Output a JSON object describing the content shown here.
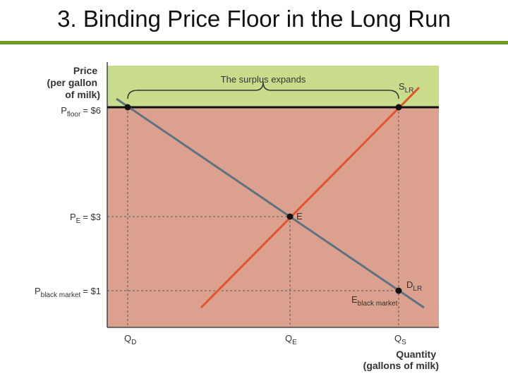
{
  "slide": {
    "title": "3. Binding Price Floor in the Long Run"
  },
  "colors": {
    "accent_rule": "#6b9a1f",
    "surplus_region": "#c9dc8c",
    "lower_region": "#dca18e",
    "supply_curve": "#e2542b",
    "demand_curve": "#5d7282",
    "floor_line": "#111111"
  },
  "diagram": {
    "y_axis": {
      "title_lines": [
        "Price",
        "(per gallon",
        "of milk)"
      ],
      "ticks": [
        {
          "main": "P",
          "sub": "floor",
          "value": "= $6"
        },
        {
          "main": "P",
          "sub": "E",
          "value": "= $3"
        },
        {
          "main": "P",
          "sub": "black market",
          "value": "= $1"
        }
      ]
    },
    "x_axis": {
      "title_lines": [
        "Quantity",
        "(gallons of milk)"
      ],
      "ticks": [
        {
          "main": "Q",
          "sub": "D"
        },
        {
          "main": "Q",
          "sub": "E"
        },
        {
          "main": "Q",
          "sub": "S"
        }
      ]
    },
    "annotations": {
      "surplus": "The surplus expands",
      "equilibrium": "E",
      "black_market": {
        "main": "E",
        "sub": "black market"
      }
    },
    "curves": {
      "supply": {
        "main": "S",
        "sub": "LR"
      },
      "demand": {
        "main": "D",
        "sub": "LR"
      }
    }
  }
}
